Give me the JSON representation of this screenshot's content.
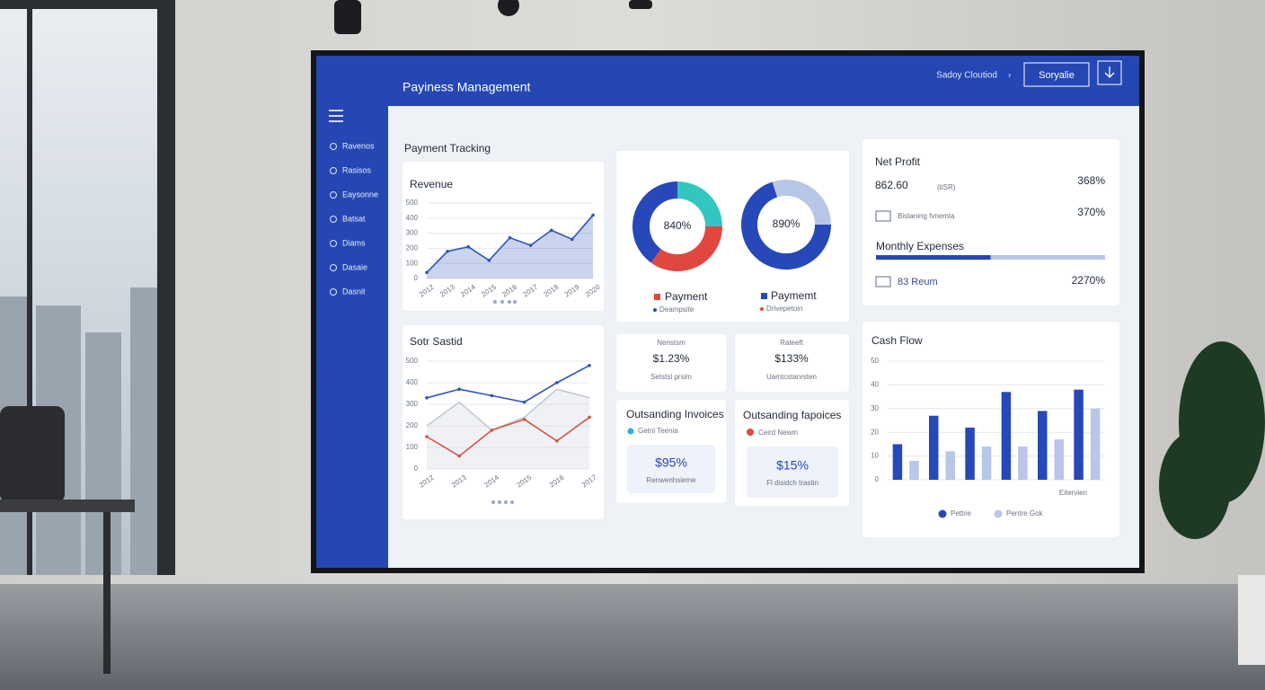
{
  "header": {
    "title": "Payiness Management",
    "breadcrumb": "Sadoy Cloutiod",
    "button": "Soryalie"
  },
  "sidebar": {
    "items": [
      "Ravenos",
      "Rasisos",
      "Eaysonne",
      "Batsat",
      "Diams",
      "Dasaie",
      "Dasnit"
    ]
  },
  "page_title": "Payment Tracking",
  "donut_legend": {
    "left": {
      "title": "Payment",
      "subtitle": "Deampsite"
    },
    "right": {
      "title": "Paymemt",
      "subtitle": "Drivepetoin"
    }
  },
  "net_profit": {
    "title": "Net Profit",
    "amount": "862.60",
    "currency": "(tiSR)",
    "amount_change": "368%",
    "row1_label": "Bistaning fvnemta",
    "row1_value": "370%",
    "expenses_label": "Monthly Expenses",
    "expenses_progress": 50,
    "expenses_progress_lim": [
      0,
      100
    ],
    "row2_label": "83 Reum",
    "row2_value": "2270%"
  },
  "stat_cards": [
    {
      "title": "Nenstsm",
      "value": "$1.23%",
      "caption": "Setstsl prsim"
    },
    {
      "title": "Rateeft",
      "value": "$133%",
      "caption": "Uamtcstanrsten"
    }
  ],
  "invoice_cards": [
    {
      "title": "Outsanding Invoices",
      "status": "Getni Teenia",
      "value": "$95%",
      "caption": "Renwenhsieme"
    },
    {
      "title": "Outsanding fapoices",
      "status": "Ceird Newm",
      "value": "$15%",
      "caption": "Fl disidch trastin"
    }
  ],
  "chart_data": [
    {
      "type": "line",
      "title": "Revenue",
      "categories": [
        "2012",
        "2013",
        "2014",
        "2015",
        "2016",
        "2017",
        "2018",
        "2019",
        "2020"
      ],
      "series": [
        {
          "color": "#2d54b8",
          "area": true,
          "values": [
            40,
            180,
            210,
            120,
            270,
            220,
            320,
            260,
            420
          ]
        }
      ],
      "ylim": [
        0,
        500
      ],
      "yticks": [
        0,
        100,
        200,
        300,
        400,
        500
      ],
      "grid": true
    },
    {
      "type": "line",
      "title": "Sotr Sastid",
      "categories": [
        "2012",
        "2013",
        "2014",
        "2015",
        "2016",
        "2017"
      ],
      "series": [
        {
          "color": "#c3c9d6",
          "area": true,
          "values": [
            200,
            310,
            180,
            240,
            370,
            330
          ]
        },
        {
          "color": "#2d54b8",
          "values": [
            330,
            370,
            340,
            310,
            400,
            480
          ]
        },
        {
          "color": "#d0573f",
          "values": [
            150,
            60,
            180,
            230,
            130,
            240
          ]
        }
      ],
      "ylim": [
        0,
        500
      ],
      "yticks": [
        0,
        100,
        200,
        300,
        400,
        500
      ],
      "grid": true
    },
    {
      "type": "donut",
      "center_label": "840%",
      "values": [
        25,
        35,
        40
      ],
      "colors": [
        "#33c6c0",
        "#e0483f",
        "#2648b8"
      ]
    },
    {
      "type": "donut",
      "center_label": "890%",
      "values": [
        30,
        70
      ],
      "colors": [
        "#b8c6e8",
        "#2648b8"
      ]
    },
    {
      "type": "bar",
      "title": "Cash Flow",
      "categories": [
        null,
        null,
        null,
        null,
        null,
        null
      ],
      "series": [
        {
          "name": "Pettrie",
          "color": "#2648b8",
          "values": [
            15,
            27,
            22,
            37,
            29,
            38
          ]
        },
        {
          "name": "Pentre Gok",
          "color": "#b8c6e8",
          "values": [
            8,
            12,
            14,
            14,
            17,
            30
          ]
        }
      ],
      "ylim": [
        0,
        50
      ],
      "yticks": [
        0,
        10,
        20,
        30,
        40,
        50
      ],
      "grid": true,
      "x_label": "Eitervien",
      "legend": "bottom"
    }
  ]
}
